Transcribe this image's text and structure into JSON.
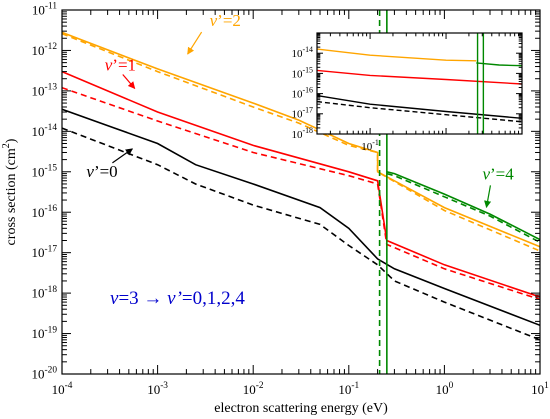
{
  "chart_data": [
    {
      "type": "line",
      "xlabel": "electron scattering energy (eV)",
      "ylabel": "cross section (cm",
      "ylabel_sup": "2",
      "ylabel_close": ")",
      "xscale": "log",
      "yscale": "log",
      "xlim": [
        0.0001,
        10
      ],
      "ylim": [
        1e-20,
        1e-11
      ],
      "x_ticks": [
        0.0001,
        0.001,
        0.01,
        0.1,
        1,
        10
      ],
      "x_tick_labels": [
        {
          "base": "10",
          "exp": "-4"
        },
        {
          "base": "10",
          "exp": "-3"
        },
        {
          "base": "10",
          "exp": "-2"
        },
        {
          "base": "10",
          "exp": "-1"
        },
        {
          "base": "10",
          "exp": "0"
        },
        {
          "base": "10",
          "exp": "1"
        }
      ],
      "y_ticks": [
        1e-20,
        1e-19,
        1e-18,
        1e-17,
        1e-16,
        1e-15,
        1e-14,
        1e-13,
        1e-12,
        1e-11
      ],
      "y_tick_labels": [
        {
          "base": "10",
          "exp": "-20"
        },
        {
          "base": "10",
          "exp": "-19"
        },
        {
          "base": "10",
          "exp": "-18"
        },
        {
          "base": "10",
          "exp": "-17"
        },
        {
          "base": "10",
          "exp": "-16"
        },
        {
          "base": "10",
          "exp": "-15"
        },
        {
          "base": "10",
          "exp": "-14"
        },
        {
          "base": "10",
          "exp": "-13"
        },
        {
          "base": "10",
          "exp": "-12"
        },
        {
          "base": "10",
          "exp": "-11"
        }
      ],
      "annotation": {
        "lhs": "v",
        "eq1": "=3",
        "arrow": "→",
        "rhs": "v’",
        "eq2": "=0,1,2,4",
        "color": "#0000cc"
      },
      "series": [
        {
          "name": "v’=2",
          "color": "#ffa500",
          "dash": "solid",
          "x": [
            0.0001,
            0.001,
            0.01,
            0.03,
            0.1,
            0.2,
            0.2,
            1,
            10
          ],
          "y": [
            2.8e-12,
            3.5e-13,
            5e-14,
            1.9e-14,
            5e-15,
            3e-15,
            1e-15,
            1.3e-16,
            1.4e-17
          ]
        },
        {
          "name": "",
          "color": "#ffa500",
          "dash": "dashed",
          "x": [
            0.0001,
            0.001,
            0.01,
            0.03,
            0.1,
            0.2,
            0.2,
            1,
            10
          ],
          "y": [
            2.6e-12,
            3e-13,
            4e-14,
            1.6e-14,
            4.5e-15,
            3e-15,
            1e-15,
            1.1e-16,
            1.1e-17
          ]
        },
        {
          "name": "v’=1",
          "color": "#ff0000",
          "dash": "solid",
          "x": [
            0.0001,
            0.001,
            0.01,
            0.1,
            0.2,
            0.25,
            1,
            10
          ],
          "y": [
            3e-13,
            3e-14,
            4.5e-15,
            1e-15,
            6e-16,
            2e-17,
            5e-18,
            8e-19
          ]
        },
        {
          "name": "",
          "color": "#ff0000",
          "dash": "dashed",
          "x": [
            0.0001,
            0.001,
            0.01,
            0.1,
            0.2,
            0.25,
            1,
            10
          ],
          "y": [
            1.2e-13,
            1.8e-14,
            3e-15,
            8e-16,
            5e-16,
            1.6e-17,
            4e-18,
            7e-19
          ]
        },
        {
          "name": "v’=0",
          "color": "#000000",
          "dash": "solid",
          "x": [
            0.0001,
            0.001,
            0.0025,
            0.01,
            0.05,
            0.1,
            0.2,
            0.3,
            1,
            10
          ],
          "y": [
            3.5e-14,
            5e-15,
            1.5e-15,
            5e-16,
            1.3e-16,
            4e-17,
            7e-18,
            4e-18,
            1.3e-18,
            1.6e-19
          ]
        },
        {
          "name": "",
          "color": "#000000",
          "dash": "dashed",
          "x": [
            0.0001,
            0.001,
            0.0025,
            0.01,
            0.05,
            0.1,
            0.2,
            0.3,
            1,
            10
          ],
          "y": [
            1.2e-14,
            1.5e-15,
            5e-16,
            1.5e-16,
            5e-17,
            1.5e-17,
            5e-18,
            2e-18,
            6e-19,
            7e-20
          ]
        },
        {
          "name": "v’=4",
          "color": "#008800",
          "dash": "solid",
          "x": [
            0.25,
            0.3,
            1,
            3,
            10
          ],
          "y": [
            1e-15,
            9e-16,
            2.8e-16,
            9e-17,
            2.1e-17
          ]
        },
        {
          "name": "",
          "color": "#008800",
          "dash": "dashed",
          "x": [
            0.25,
            0.3,
            1,
            3,
            10
          ],
          "y": [
            9e-16,
            8e-16,
            2.4e-16,
            8e-17,
            1.8e-17
          ]
        }
      ],
      "threshold_lines": [
        {
          "color": "#008800",
          "dash": "solid",
          "x": 0.25
        },
        {
          "color": "#008800",
          "dash": "dashed",
          "x": 0.21
        }
      ],
      "labels": [
        {
          "series": "v’=2",
          "prefix": "v",
          "suffix": "’=2",
          "color": "#ffa500",
          "x": 0.0035,
          "y": 4e-12
        },
        {
          "series": "v’=1",
          "prefix": "v",
          "suffix": "’=1",
          "color": "#ff0000",
          "x": 0.00028,
          "y": 3.2e-13
        },
        {
          "series": "v’=0",
          "prefix": "v",
          "suffix": "’=0",
          "color": "#000000",
          "x": 0.00018,
          "y": 7.5e-16
        },
        {
          "series": "v’=4",
          "prefix": "v",
          "suffix": "’=4",
          "color": "#008800",
          "x": 2.5,
          "y": 6.5e-16
        }
      ]
    },
    {
      "type": "line",
      "role": "inset",
      "xscale": "log",
      "yscale": "log",
      "xlim": [
        0.02,
        10
      ],
      "ylim": [
        1e-18,
        1e-13
      ],
      "x_tick_labels": [
        {
          "base": "10",
          "exp": "-1"
        }
      ],
      "x_ticks": [
        0.1
      ],
      "y_ticks": [
        1e-18,
        1e-17,
        1e-16,
        1e-15,
        1e-14
      ],
      "y_tick_labels": [
        {
          "base": "10",
          "exp": "-18"
        },
        {
          "base": "10",
          "exp": "-17"
        },
        {
          "base": "10",
          "exp": "-16"
        },
        {
          "base": "10",
          "exp": "-15"
        },
        {
          "base": "10",
          "exp": "-14"
        }
      ],
      "series": [
        {
          "name": "",
          "color": "#ffa500",
          "dash": "solid",
          "x": [
            0.02,
            0.1,
            1,
            2.5
          ],
          "y": [
            1.6e-14,
            8e-15,
            4.5e-15,
            4.2e-15
          ]
        },
        {
          "name": "",
          "color": "#008800",
          "dash": "solid",
          "x": [
            2.5,
            5,
            10
          ],
          "y": [
            3.3e-15,
            2.6e-15,
            2.4e-15
          ]
        },
        {
          "name": "",
          "color": "#ff0000",
          "dash": "solid",
          "x": [
            0.02,
            0.1,
            1,
            10
          ],
          "y": [
            1.4e-15,
            8e-16,
            5e-16,
            3e-16
          ]
        },
        {
          "name": "",
          "color": "#000000",
          "dash": "solid",
          "x": [
            0.02,
            0.1,
            1,
            10
          ],
          "y": [
            8e-17,
            3e-17,
            1.3e-17,
            6e-18
          ]
        },
        {
          "name": "",
          "color": "#000000",
          "dash": "dashed",
          "x": [
            0.02,
            0.1,
            1,
            10
          ],
          "y": [
            4e-17,
            2e-17,
            9e-18,
            4e-18
          ]
        }
      ],
      "threshold_lines": [
        {
          "color": "#008800",
          "dash": "solid",
          "x": 2.6
        },
        {
          "color": "#008800",
          "dash": "solid",
          "x": 3.1
        }
      ]
    }
  ]
}
